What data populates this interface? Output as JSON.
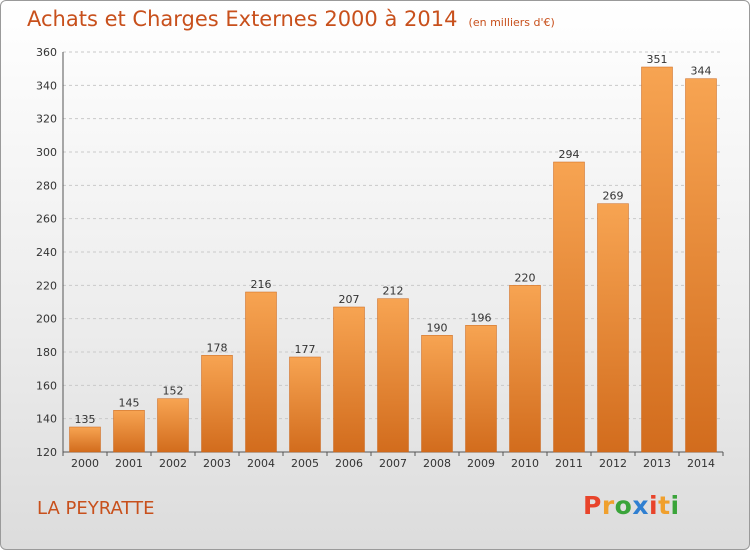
{
  "header": {
    "title": "Achats et Charges Externes 2000 à 2014",
    "subtitle": "(en milliers d'€)"
  },
  "footer": {
    "commune": "LA PEYRATTE",
    "logo": [
      "P",
      "r",
      "o",
      "x",
      "i",
      "t",
      "i"
    ]
  },
  "colors": {
    "title": "#c8501c",
    "bar_light": "#f7a452",
    "bar_dark": "#d26c1d",
    "grid": "#c9c9c9",
    "logo": [
      "#e8442b",
      "#f0a02d",
      "#3aa43a",
      "#2f7fd1",
      "#e8442b",
      "#f0a02d",
      "#3aa43a"
    ]
  },
  "chart_data": {
    "type": "bar",
    "title": "Achats et Charges Externes 2000 à 2014",
    "subtitle": "(en milliers d'€)",
    "xlabel": "",
    "ylabel": "",
    "categories": [
      "2000",
      "2001",
      "2002",
      "2003",
      "2004",
      "2005",
      "2006",
      "2007",
      "2008",
      "2009",
      "2010",
      "2011",
      "2012",
      "2013",
      "2014"
    ],
    "values": [
      135,
      145,
      152,
      178,
      216,
      177,
      207,
      212,
      190,
      196,
      220,
      294,
      269,
      351,
      344
    ],
    "ylim": [
      120,
      360
    ],
    "yticks": [
      120,
      140,
      160,
      180,
      200,
      220,
      240,
      260,
      280,
      300,
      320,
      340,
      360
    ],
    "grid": true,
    "legend": "none"
  }
}
